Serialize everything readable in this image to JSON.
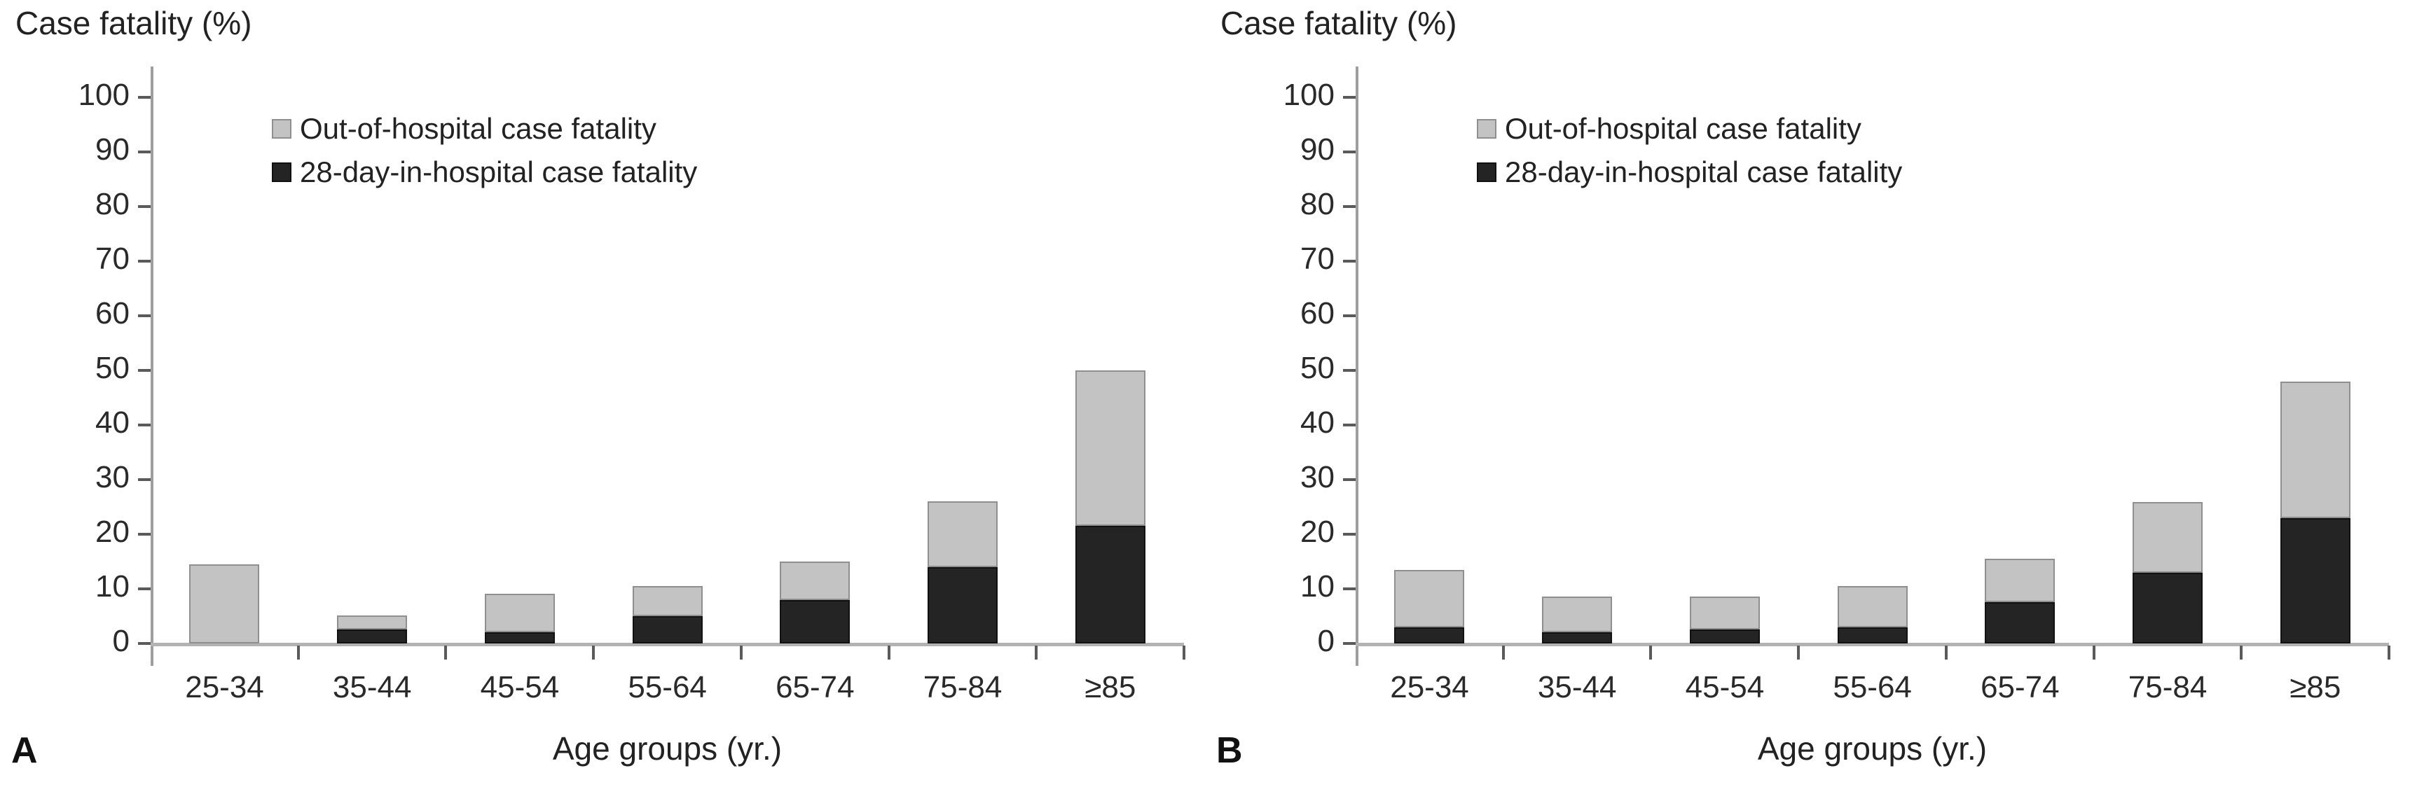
{
  "figure": {
    "panels": [
      {
        "label": "A"
      },
      {
        "label": "B"
      }
    ],
    "colors": {
      "out_of_hospital": "#c3c3c3",
      "out_of_hospital_border": "#8f8f8f",
      "in_hospital": "#242424",
      "axis": "#b3b3b3",
      "text": "#222222"
    }
  },
  "chart_data": [
    {
      "type": "bar",
      "stacked": true,
      "panel": "A",
      "title": "Case fatality (%)",
      "ylabel": "Case fatality (%)",
      "xlabel": "Age groups (yr.)",
      "ylim": [
        0,
        100
      ],
      "ytick_step": 10,
      "grid": false,
      "legend_position": "top-left-inside",
      "categories": [
        "25-34",
        "35-44",
        "45-54",
        "55-64",
        "65-74",
        "75-84",
        "≥85"
      ],
      "series": [
        {
          "name": "28-day-in-hospital case fatality",
          "color": "#242424",
          "values": [
            0,
            2.5,
            2,
            5,
            8,
            14,
            21.5
          ]
        },
        {
          "name": "Out-of-hospital case fatality",
          "color": "#c3c3c3",
          "values": [
            14.5,
            2.5,
            7,
            5.5,
            7,
            12,
            28.5
          ]
        }
      ],
      "stacked_totals": [
        14.5,
        5,
        9,
        10.5,
        15,
        26,
        50
      ]
    },
    {
      "type": "bar",
      "stacked": true,
      "panel": "B",
      "title": "Case fatality (%)",
      "ylabel": "Case fatality (%)",
      "xlabel": "Age groups (yr.)",
      "ylim": [
        0,
        100
      ],
      "ytick_step": 10,
      "grid": false,
      "legend_position": "top-left-inside",
      "categories": [
        "25-34",
        "35-44",
        "45-54",
        "55-64",
        "65-74",
        "75-84",
        "≥85"
      ],
      "series": [
        {
          "name": "28-day-in-hospital case fatality",
          "color": "#242424",
          "values": [
            3,
            2,
            2.5,
            3,
            7.5,
            13,
            23
          ]
        },
        {
          "name": "Out-of-hospital case fatality",
          "color": "#c3c3c3",
          "values": [
            10.5,
            6.5,
            6,
            7.5,
            8,
            13,
            25
          ]
        }
      ],
      "stacked_totals": [
        13.5,
        8.5,
        8.5,
        10.5,
        15.5,
        26,
        48
      ]
    }
  ]
}
